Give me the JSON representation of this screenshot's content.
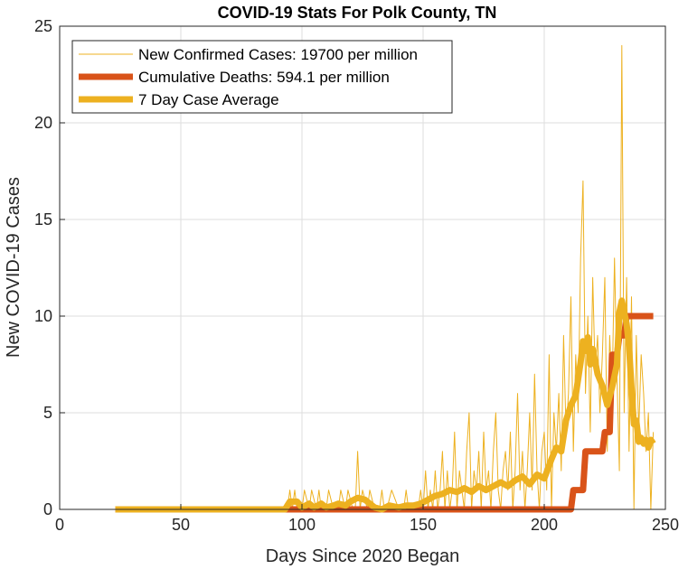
{
  "chart_data": {
    "type": "line",
    "title": "COVID-19 Stats For Polk County, TN",
    "xlabel": "Days Since 2020 Began",
    "ylabel": "New COVID-19 Cases",
    "xlim": [
      0,
      250
    ],
    "ylim": [
      0,
      25
    ],
    "xticks": [
      "0",
      "50",
      "100",
      "150",
      "200",
      "250"
    ],
    "yticks": [
      "0",
      "5",
      "10",
      "15",
      "20",
      "25"
    ],
    "grid": true,
    "legend_position": "top-left",
    "series": [
      {
        "name": "New Confirmed Cases: 19700 per million",
        "color": "#EDB120",
        "style": "thin",
        "x": [
          23,
          94,
          95,
          96,
          97,
          98,
          100,
          101,
          103,
          104,
          106,
          107,
          108,
          110,
          111,
          113,
          115,
          116,
          118,
          119,
          121,
          122,
          123,
          124,
          125,
          127,
          128,
          130,
          132,
          133,
          134,
          135,
          137,
          140,
          142,
          143,
          144,
          146,
          148,
          149,
          150,
          151,
          152,
          153,
          154,
          155,
          156,
          157,
          158,
          159,
          160,
          161,
          162,
          163,
          164,
          165,
          166,
          167,
          168,
          169,
          170,
          171,
          172,
          173,
          174,
          175,
          176,
          177,
          178,
          179,
          180,
          181,
          182,
          183,
          184,
          185,
          186,
          187,
          188,
          189,
          190,
          191,
          192,
          193,
          194,
          195,
          196,
          197,
          198,
          199,
          200,
          201,
          202,
          203,
          204,
          205,
          206,
          207,
          208,
          209,
          210,
          211,
          212,
          213,
          214,
          215,
          216,
          217,
          218,
          219,
          220,
          221,
          222,
          223,
          224,
          225,
          226,
          227,
          228,
          229,
          230,
          231,
          232,
          233,
          234,
          235,
          236,
          237,
          238,
          239,
          240,
          241,
          242,
          243,
          244,
          245
        ],
        "y": [
          0,
          0,
          1,
          0,
          1,
          0,
          0,
          1,
          0,
          1,
          0,
          1,
          0,
          0,
          1,
          0,
          0,
          1,
          0,
          1,
          0,
          0,
          3,
          0,
          1,
          0,
          1,
          0,
          0,
          1,
          0,
          0,
          1,
          0,
          0,
          1,
          0,
          0,
          0,
          1,
          0,
          2,
          0,
          1,
          0,
          2,
          0,
          1,
          3,
          0,
          2,
          0,
          1,
          4,
          0,
          2,
          1,
          0,
          3,
          5,
          0,
          2,
          1,
          3,
          0,
          4,
          1,
          2,
          0,
          3,
          5,
          1,
          0,
          2,
          3,
          1,
          4,
          0,
          2,
          6,
          1,
          3,
          0,
          2,
          5,
          1,
          7,
          2,
          0,
          3,
          4,
          1,
          8,
          0,
          5,
          3,
          6,
          2,
          9,
          4,
          6,
          11,
          3,
          8,
          5,
          13,
          17,
          6,
          10,
          4,
          12,
          7,
          9,
          5,
          8,
          12,
          3,
          9,
          6,
          13,
          7,
          2,
          24,
          5,
          12,
          3,
          11,
          0,
          9,
          4,
          8,
          6,
          3,
          5,
          0,
          4
        ]
      },
      {
        "name": "Cumulative Deaths: 594.1 per million",
        "color": "#D95319",
        "style": "thick",
        "x": [
          23,
          211,
          212,
          216,
          217,
          224,
          225,
          227,
          228,
          230,
          231,
          233,
          234,
          245
        ],
        "y": [
          0,
          0,
          1,
          1,
          3,
          3,
          4,
          4,
          8,
          8,
          9,
          9,
          10,
          10
        ]
      },
      {
        "name": "7 Day Case Average",
        "color": "#EDB120",
        "style": "thick",
        "x": [
          23,
          93,
          95,
          98,
          100,
          103,
          105,
          108,
          110,
          113,
          115,
          118,
          120,
          123,
          126,
          130,
          133,
          136,
          140,
          143,
          146,
          149,
          152,
          155,
          158,
          161,
          164,
          167,
          170,
          173,
          176,
          179,
          182,
          185,
          188,
          191,
          194,
          197,
          200,
          203,
          205,
          207,
          209,
          211,
          213,
          215,
          216,
          217,
          218,
          219,
          220,
          222,
          224,
          226,
          228,
          230,
          231,
          232,
          233,
          234,
          235,
          236,
          237,
          238,
          239,
          240,
          241,
          242,
          243,
          244,
          245
        ],
        "y": [
          0,
          0,
          0.4,
          0.4,
          0.1,
          0.3,
          0.1,
          0.3,
          0.1,
          0.2,
          0.3,
          0.2,
          0.4,
          0.6,
          0.5,
          0.1,
          0,
          0.2,
          0.1,
          0.2,
          0.2,
          0.3,
          0.5,
          0.7,
          0.8,
          1.0,
          0.9,
          1.1,
          0.9,
          1.2,
          1.0,
          1.2,
          1.4,
          1.2,
          1.5,
          1.7,
          1.3,
          1.8,
          1.6,
          2.6,
          3.2,
          3.0,
          4.6,
          5.4,
          5.9,
          7.6,
          8.7,
          8.2,
          8.9,
          7.5,
          8.3,
          7.0,
          6.4,
          5.4,
          6.3,
          7.5,
          10.2,
          10.8,
          10.2,
          9.6,
          8.4,
          6.3,
          4.4,
          4.6,
          3.5,
          3.7,
          3.4,
          3.6,
          3.2,
          3.6,
          3.4
        ]
      }
    ]
  }
}
